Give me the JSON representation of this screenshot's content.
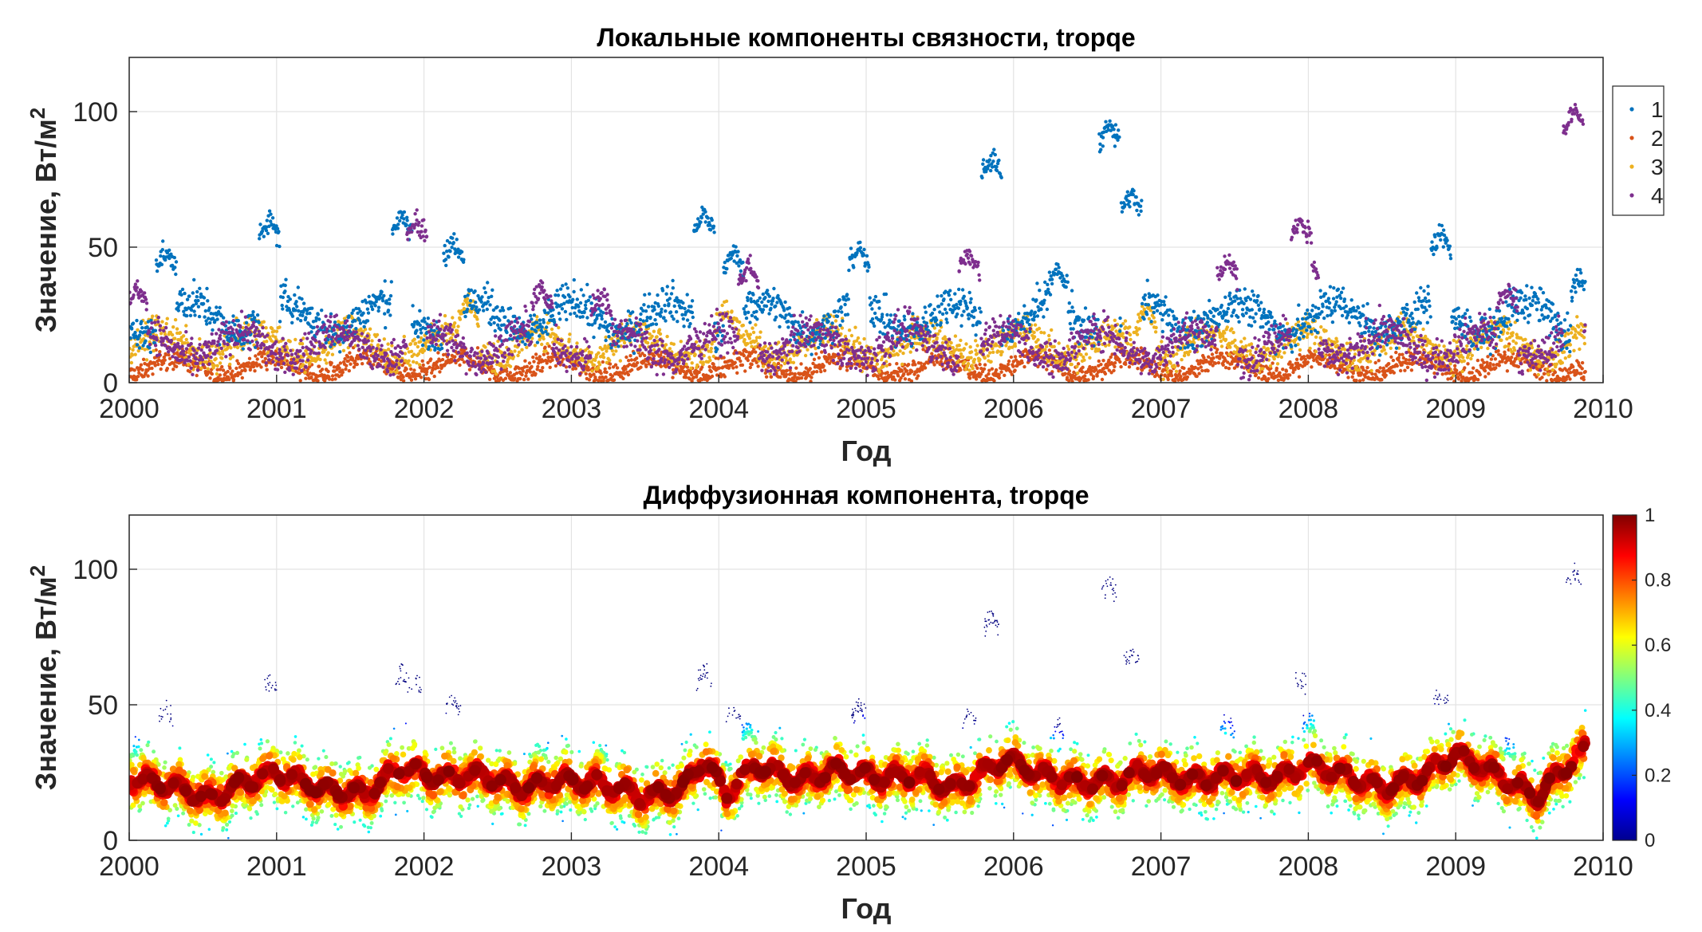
{
  "chart_data": [
    {
      "type": "scatter",
      "title": "Локальные компоненты связности, tropqe",
      "xlabel": "Год",
      "ylabel": "Значение, Вт/м",
      "ylabel_sup": "2",
      "xlim": [
        2000,
        2010
      ],
      "ylim": [
        0,
        120
      ],
      "xticks": [
        "2000",
        "2001",
        "2002",
        "2003",
        "2004",
        "2005",
        "2006",
        "2007",
        "2008",
        "2009",
        "2010"
      ],
      "yticks": [
        "0",
        "50",
        "100"
      ],
      "grid": true,
      "legend": "top-right-outside",
      "series": [
        {
          "name": "1",
          "color": "#0072BD",
          "baseline": 24,
          "spread": 12,
          "episodes": [
            [
              2000.25,
              49
            ],
            [
              2000.95,
              60
            ],
            [
              2001.85,
              62
            ],
            [
              2002.2,
              52
            ],
            [
              2003.9,
              63
            ],
            [
              2004.1,
              48
            ],
            [
              2004.95,
              50
            ],
            [
              2005.85,
              83
            ],
            [
              2006.3,
              42
            ],
            [
              2006.65,
              95
            ],
            [
              2006.8,
              70
            ],
            [
              2008.9,
              55
            ],
            [
              2009.85,
              40
            ]
          ]
        },
        {
          "name": "2",
          "color": "#D95319",
          "baseline": 6,
          "spread": 7,
          "episodes": []
        },
        {
          "name": "3",
          "color": "#EDB120",
          "baseline": 14,
          "spread": 10,
          "episodes": [
            [
              2002.3,
              30
            ],
            [
              2004.05,
              28
            ],
            [
              2006.9,
              27
            ]
          ]
        },
        {
          "name": "4",
          "color": "#7E2F8E",
          "baseline": 14,
          "spread": 11,
          "episodes": [
            [
              2000.05,
              35
            ],
            [
              2001.95,
              60
            ],
            [
              2002.8,
              35
            ],
            [
              2003.2,
              33
            ],
            [
              2004.2,
              43
            ],
            [
              2005.7,
              48
            ],
            [
              2007.45,
              45
            ],
            [
              2007.95,
              60
            ],
            [
              2008.0,
              45
            ],
            [
              2009.35,
              35
            ],
            [
              2009.8,
              100
            ]
          ]
        }
      ]
    },
    {
      "type": "scatter",
      "title": "Диффузионная компонента, tropqe",
      "xlabel": "Год",
      "ylabel": "Значение, Вт/м",
      "ylabel_sup": "2",
      "xlim": [
        2000,
        2010
      ],
      "ylim": [
        0,
        120
      ],
      "xticks": [
        "2000",
        "2001",
        "2002",
        "2003",
        "2004",
        "2005",
        "2006",
        "2007",
        "2008",
        "2009",
        "2010"
      ],
      "yticks": [
        "0",
        "50",
        "100"
      ],
      "grid": true,
      "colormap": "jet",
      "colorbar": {
        "min": 0,
        "max": 1,
        "ticks": [
          "0",
          "0.2",
          "0.4",
          "0.6",
          "0.8",
          "1"
        ]
      },
      "diffusion_center": [
        [
          2000.0,
          23
        ],
        [
          2000.3,
          20
        ],
        [
          2000.55,
          15
        ],
        [
          2000.8,
          22
        ],
        [
          2001.0,
          25
        ],
        [
          2001.3,
          19
        ],
        [
          2001.6,
          17
        ],
        [
          2001.85,
          27
        ],
        [
          2002.1,
          23
        ],
        [
          2002.4,
          24
        ],
        [
          2002.65,
          19
        ],
        [
          2002.9,
          22
        ],
        [
          2003.2,
          21
        ],
        [
          2003.5,
          16
        ],
        [
          2003.75,
          19
        ],
        [
          2003.9,
          30
        ],
        [
          2004.05,
          17
        ],
        [
          2004.25,
          28
        ],
        [
          2004.55,
          22
        ],
        [
          2004.8,
          26
        ],
        [
          2005.1,
          23
        ],
        [
          2005.35,
          24
        ],
        [
          2005.6,
          19
        ],
        [
          2005.95,
          30
        ],
        [
          2006.2,
          24
        ],
        [
          2006.45,
          21
        ],
        [
          2006.7,
          22
        ],
        [
          2006.9,
          26
        ],
        [
          2007.2,
          22
        ],
        [
          2007.5,
          24
        ],
        [
          2007.8,
          23
        ],
        [
          2008.0,
          28
        ],
        [
          2008.25,
          24
        ],
        [
          2008.5,
          19
        ],
        [
          2008.75,
          23
        ],
        [
          2009.0,
          32
        ],
        [
          2009.25,
          25
        ],
        [
          2009.55,
          16
        ],
        [
          2009.8,
          30
        ],
        [
          2009.88,
          33
        ]
      ]
    }
  ]
}
